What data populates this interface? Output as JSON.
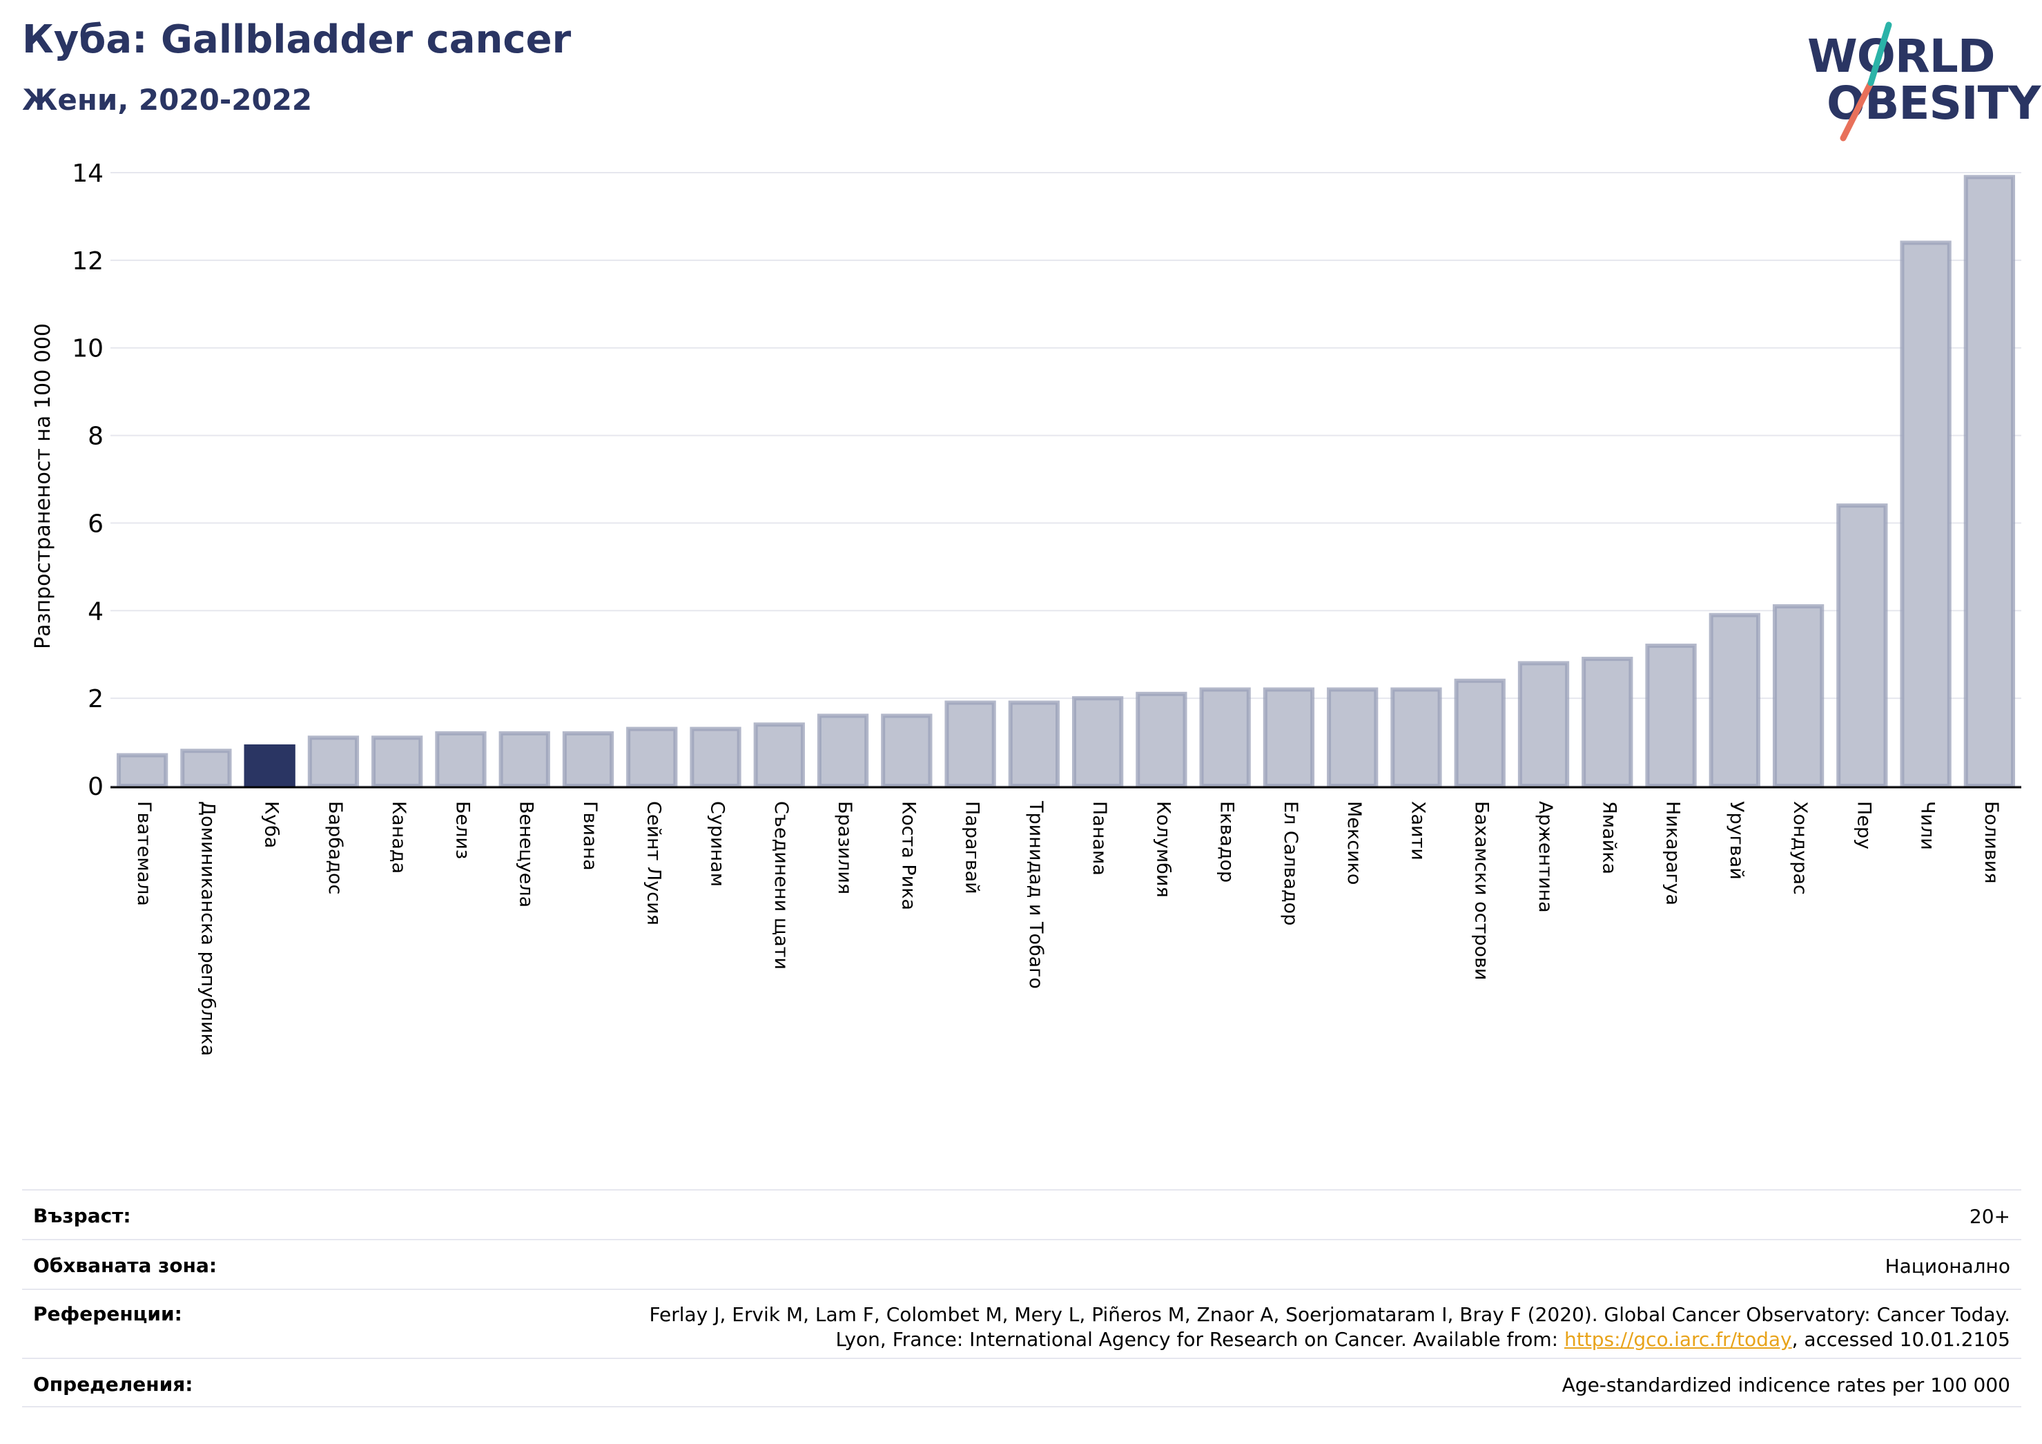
{
  "header": {
    "title": "Куба: Gallbladder cancer",
    "subtitle": "Жени, 2020-2022"
  },
  "logo": {
    "line1": "WORLD",
    "line2": "OBESITY",
    "colors": {
      "navy": "#2a3563",
      "teal": "#2bb3a8",
      "coral": "#e8705a"
    }
  },
  "chart_data": {
    "type": "bar",
    "ylabel": "Разпространеност  на 100 000",
    "ylim": [
      0,
      14
    ],
    "yticks": [
      0,
      2,
      4,
      6,
      8,
      10,
      12,
      14
    ],
    "grid": true,
    "highlight": "Куба",
    "colors": {
      "bar": "#bfc3d1",
      "bar_edge": "#9aa0b8",
      "highlight": "#2a3563"
    },
    "categories": [
      "Гватемала",
      "Доминиканска република",
      "Куба",
      "Барбадос",
      "Канада",
      "Белиз",
      "Венецуела",
      "Гвиана",
      "Сейнт Лусия",
      "Суринам",
      "Съединени щати",
      "Бразилия",
      "Коста Рика",
      "Парагвай",
      "Тринидад и Тобаго",
      "Панама",
      "Колумбия",
      "Еквадор",
      "Ел Салвадор",
      "Мексико",
      "Хаити",
      "Бахамски острови",
      "Аржентина",
      "Ямайка",
      "Никарагуа",
      "Уругвай",
      "Хондурас",
      "Перу",
      "Чили",
      "Боливия"
    ],
    "values": [
      0.7,
      0.8,
      0.9,
      1.1,
      1.1,
      1.2,
      1.2,
      1.2,
      1.3,
      1.3,
      1.4,
      1.6,
      1.6,
      1.9,
      1.9,
      2.0,
      2.1,
      2.2,
      2.2,
      2.2,
      2.2,
      2.4,
      2.8,
      2.9,
      3.2,
      3.9,
      4.1,
      6.4,
      12.4,
      13.9
    ]
  },
  "meta": {
    "age_label": "Възраст:",
    "age_value": "20+",
    "coverage_label": "Обхваната зона:",
    "coverage_value": "Национално",
    "refs_label": "Референции:",
    "refs_line1": "Ferlay J, Ervik M, Lam F, Colombet M, Mery L, Piñeros M, Znaor A, Soerjomataram I, Bray F (2020). Global Cancer Observatory: Cancer Today.",
    "refs_line2_pre": "Lyon, France: International Agency for Research on Cancer. Available from: ",
    "refs_link": "https://gco.iarc.fr/today",
    "refs_line2_post": ", accessed 10.01.2105",
    "defs_label": "Определения:",
    "defs_value": "Age-standardized indicence rates per 100 000"
  }
}
